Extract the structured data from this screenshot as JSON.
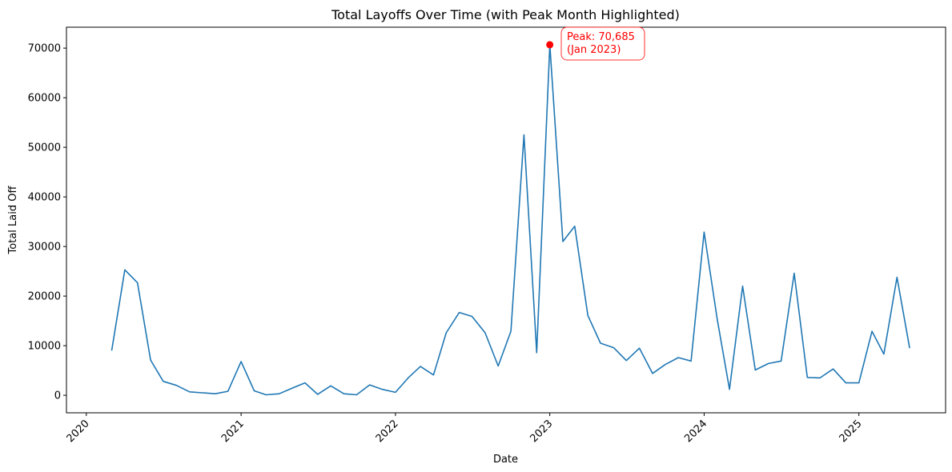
{
  "chart_data": {
    "type": "line",
    "title": "Total Layoffs Over Time (with Peak Month Highlighted)",
    "xlabel": "Date",
    "ylabel": "Total Laid Off",
    "xlim": [
      "2019-11-15",
      "2025-07-25"
    ],
    "ylim": [
      -3534,
      74219
    ],
    "x_ticks": [
      "2020-01-01",
      "2021-01-01",
      "2022-01-01",
      "2023-01-01",
      "2024-01-01",
      "2025-01-01"
    ],
    "x_tick_labels": [
      "2020",
      "2021",
      "2022",
      "2023",
      "2024",
      "2025"
    ],
    "y_ticks": [
      0,
      10000,
      20000,
      30000,
      40000,
      50000,
      60000,
      70000
    ],
    "y_tick_labels": [
      "0",
      "10000",
      "20000",
      "30000",
      "40000",
      "50000",
      "60000",
      "70000"
    ],
    "grid": false,
    "line_color": "#1f77b4",
    "series": [
      {
        "x": [
          "2020-03-01",
          "2020-04-01",
          "2020-05-01",
          "2020-06-01",
          "2020-07-01",
          "2020-08-01",
          "2020-09-01",
          "2020-10-01",
          "2020-11-01",
          "2020-12-01",
          "2021-01-01",
          "2021-02-01",
          "2021-03-01",
          "2021-04-01",
          "2021-05-01",
          "2021-06-01",
          "2021-07-01",
          "2021-08-01",
          "2021-09-01",
          "2021-10-01",
          "2021-11-01",
          "2021-12-01",
          "2022-01-01",
          "2022-02-01",
          "2022-03-01",
          "2022-04-01",
          "2022-05-01",
          "2022-06-01",
          "2022-07-01",
          "2022-08-01",
          "2022-09-01",
          "2022-10-01",
          "2022-11-01",
          "2022-12-01",
          "2023-01-01",
          "2023-02-01",
          "2023-03-01",
          "2023-04-01",
          "2023-05-01",
          "2023-06-01",
          "2023-07-01",
          "2023-08-01",
          "2023-09-01",
          "2023-10-01",
          "2023-11-01",
          "2023-12-01",
          "2024-01-01",
          "2024-02-01",
          "2024-03-01",
          "2024-04-01",
          "2024-05-01",
          "2024-06-01",
          "2024-07-01",
          "2024-08-01",
          "2024-09-01",
          "2024-10-01",
          "2024-11-01",
          "2024-12-01",
          "2025-01-01",
          "2025-02-01",
          "2025-03-01",
          "2025-04-01",
          "2025-05-01"
        ],
        "values": [
          9000,
          25300,
          22700,
          7100,
          2800,
          2000,
          700,
          500,
          300,
          800,
          6800,
          900,
          100,
          300,
          1400,
          2500,
          200,
          1900,
          300,
          100,
          2100,
          1200,
          600,
          3600,
          5800,
          4100,
          12600,
          16700,
          15900,
          12600,
          5900,
          12900,
          52500,
          8600,
          70685,
          31000,
          34100,
          16100,
          10500,
          9600,
          7000,
          9500,
          4400,
          6200,
          7600,
          6900,
          32900,
          15300,
          1200,
          22000,
          5100,
          6400,
          6900,
          24600,
          3600,
          3500,
          5300,
          2500,
          2500,
          12900,
          8300,
          23800,
          9500
        ]
      }
    ],
    "peak": {
      "x": "2023-01-01",
      "value": 70685,
      "color": "#ff0000",
      "label_line1": "Peak: 70,685",
      "label_line2": "(Jan 2023)"
    }
  }
}
